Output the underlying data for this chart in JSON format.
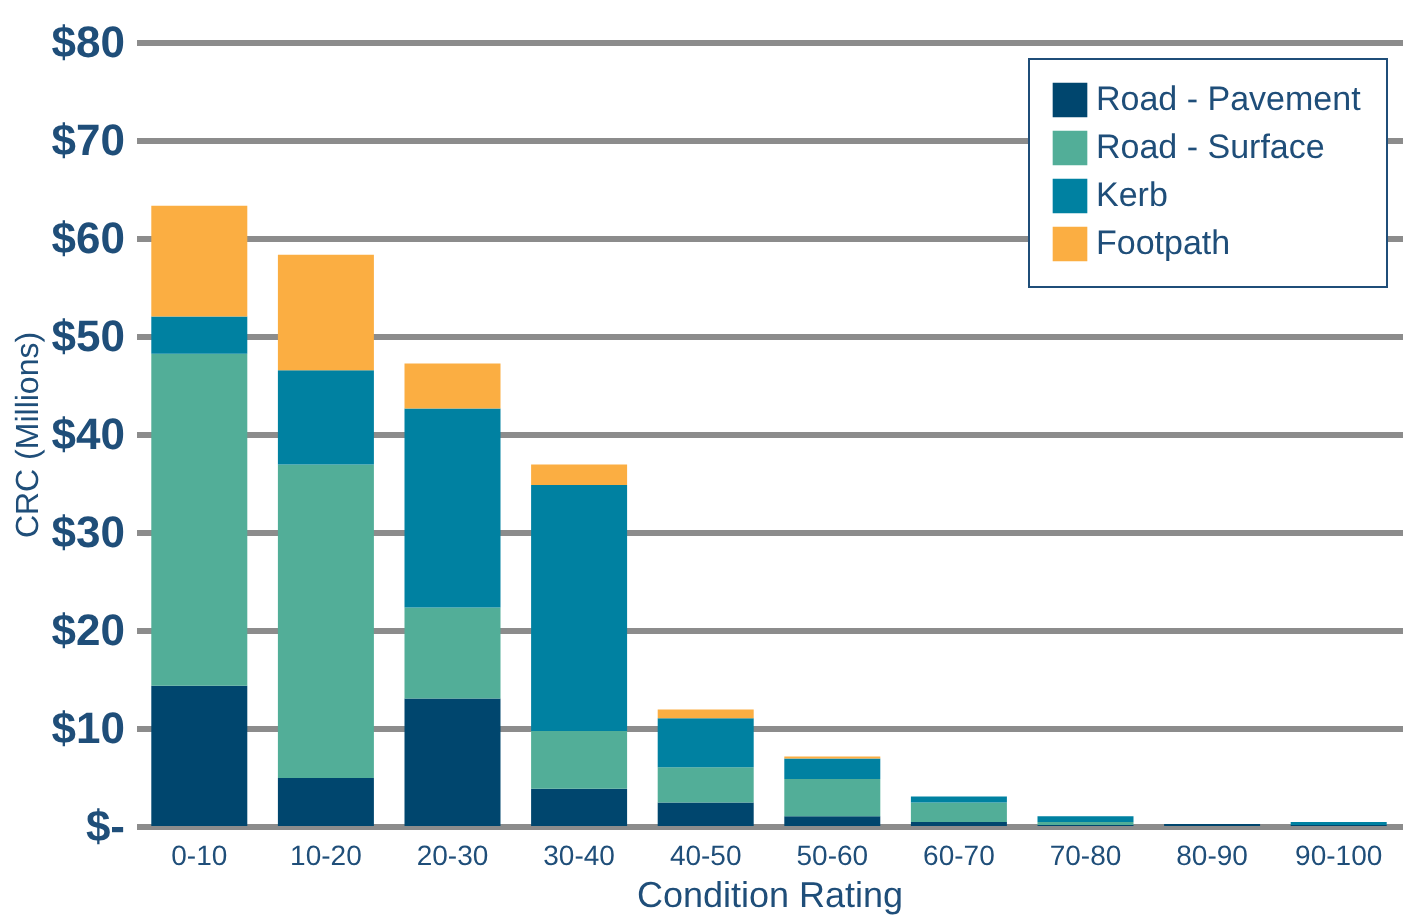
{
  "chart_data": {
    "type": "bar",
    "stacked": true,
    "xlabel": "Condition Rating",
    "ylabel": "CRC (Millions)",
    "categories": [
      "0-10",
      "10-20",
      "20-30",
      "30-40",
      "40-50",
      "50-60",
      "60-70",
      "70-80",
      "80-90",
      "90-100"
    ],
    "series": [
      {
        "name": "Road - Pavement",
        "color": "#00466e",
        "values": [
          14.3,
          4.9,
          13.0,
          3.8,
          2.4,
          1.0,
          0.4,
          0.1,
          0.2,
          0.1
        ]
      },
      {
        "name": "Road - Surface",
        "color": "#52ae98",
        "values": [
          33.9,
          32.0,
          9.3,
          5.9,
          3.6,
          3.8,
          2.0,
          0.3,
          0,
          0
        ]
      },
      {
        "name": "Kerb",
        "color": "#0081a1",
        "values": [
          3.8,
          9.6,
          20.3,
          25.1,
          5.0,
          2.1,
          0.6,
          0.6,
          0,
          0.3
        ]
      },
      {
        "name": "Footpath",
        "color": "#fbae42",
        "values": [
          11.3,
          11.8,
          4.6,
          2.1,
          0.9,
          0.2,
          0,
          0,
          0,
          0
        ]
      }
    ],
    "ylim": [
      0,
      80
    ],
    "yticks": [
      {
        "value": 0,
        "label": "$-"
      },
      {
        "value": 10,
        "label": "$10"
      },
      {
        "value": 20,
        "label": "$20"
      },
      {
        "value": 30,
        "label": "$30"
      },
      {
        "value": 40,
        "label": "$40"
      },
      {
        "value": 50,
        "label": "$50"
      },
      {
        "value": 60,
        "label": "$60"
      },
      {
        "value": 70,
        "label": "$70"
      },
      {
        "value": 80,
        "label": "$80"
      }
    ],
    "grid": "y",
    "legend": "top right"
  }
}
